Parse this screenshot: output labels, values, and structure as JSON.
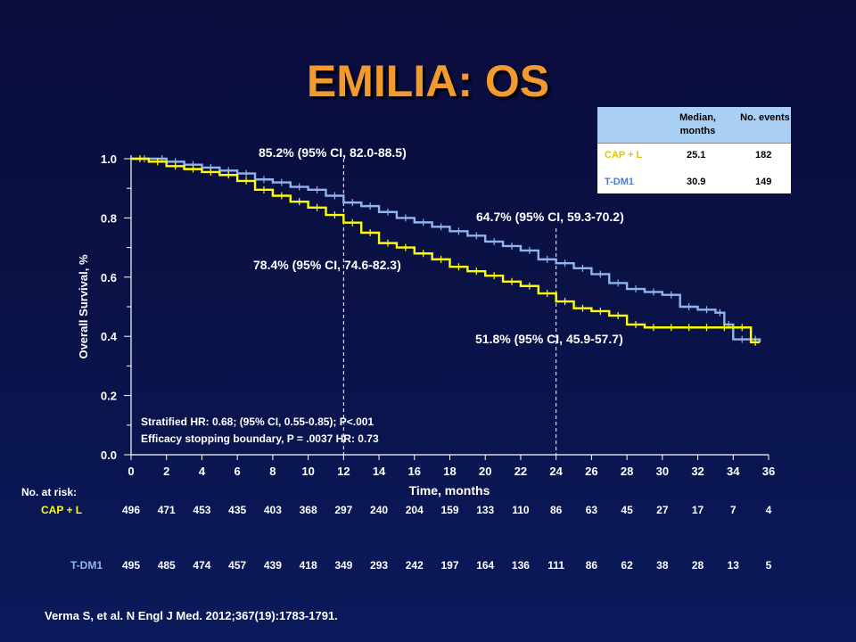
{
  "title": "EMILIA: OS",
  "colors": {
    "cap_l": "#ffff00",
    "tdm1": "#8fb4ee",
    "title": "#f29a2e"
  },
  "stat_table": {
    "headers": [
      "",
      "Median, months",
      "No. events"
    ],
    "rows": [
      {
        "name": "CAP + L",
        "median": "25.1",
        "events": "182"
      },
      {
        "name": "T-DM1",
        "median": "30.9",
        "events": "149"
      }
    ]
  },
  "annotations": {
    "t12_tdm1": "85.2% (95% CI, 82.0-88.5)",
    "t12_capl": "78.4% (95% CI, 74.6-82.3)",
    "t24_tdm1": "64.7% (95% CI, 59.3-70.2)",
    "t24_capl": "51.8% (95% CI, 45.9-57.7)",
    "hr_line1": "Stratified HR: 0.68; (95% CI, 0.55-0.85); P<.001",
    "hr_line2": "Efficacy stopping boundary, P = .0037 HR: 0.73"
  },
  "risk_table": {
    "header": "No. at risk:",
    "cap_l": {
      "label": "CAP + L",
      "values": [
        "496",
        "471",
        "453",
        "435",
        "403",
        "368",
        "297",
        "240",
        "204",
        "159",
        "133",
        "110",
        "86",
        "63",
        "45",
        "27",
        "17",
        "7",
        "4"
      ]
    },
    "tdm1": {
      "label": "T-DM1",
      "values": [
        "495",
        "485",
        "474",
        "457",
        "439",
        "418",
        "349",
        "293",
        "242",
        "197",
        "164",
        "136",
        "111",
        "86",
        "62",
        "38",
        "28",
        "13",
        "5"
      ]
    }
  },
  "citation": "Verma S, et al. N Engl J Med. 2012;367(19):1783-1791.",
  "chart_data": {
    "type": "line",
    "xlabel": "Time, months",
    "ylabel": "Overall Survival, %",
    "xlim": [
      0,
      36
    ],
    "ylim": [
      0,
      1.0
    ],
    "xticks": [
      "0",
      "2",
      "4",
      "6",
      "8",
      "10",
      "12",
      "14",
      "16",
      "18",
      "20",
      "22",
      "24",
      "26",
      "28",
      "30",
      "32",
      "34",
      "36"
    ],
    "yticks": [
      "0.0",
      "0.2",
      "0.4",
      "0.6",
      "0.8",
      "1.0"
    ],
    "reference_lines_x": [
      12,
      24
    ],
    "series": [
      {
        "name": "T-DM1",
        "color": "#8fb4ee",
        "x": [
          0,
          1.5,
          2,
          3,
          4,
          5,
          6,
          7,
          8,
          9,
          10,
          11,
          12,
          13,
          14,
          15,
          16,
          17,
          18,
          19,
          20,
          21,
          22,
          23,
          24,
          25,
          26,
          27,
          28,
          29,
          30,
          31,
          32,
          33,
          33.5,
          34,
          35,
          35.5
        ],
        "y": [
          1.0,
          1.0,
          0.99,
          0.98,
          0.97,
          0.96,
          0.95,
          0.93,
          0.92,
          0.905,
          0.895,
          0.875,
          0.852,
          0.84,
          0.82,
          0.8,
          0.785,
          0.77,
          0.755,
          0.74,
          0.72,
          0.705,
          0.69,
          0.66,
          0.647,
          0.63,
          0.61,
          0.58,
          0.56,
          0.55,
          0.54,
          0.5,
          0.49,
          0.48,
          0.44,
          0.39,
          0.39,
          0.38
        ]
      },
      {
        "name": "CAP + L",
        "color": "#ffff00",
        "x": [
          0,
          1,
          2,
          3,
          4,
          5,
          6,
          7,
          8,
          9,
          10,
          11,
          12,
          13,
          14,
          15,
          16,
          17,
          18,
          19,
          20,
          21,
          22,
          23,
          24,
          25,
          26,
          27,
          28,
          29,
          30,
          31,
          32,
          33,
          34,
          35,
          35.5
        ],
        "y": [
          1.0,
          0.99,
          0.975,
          0.965,
          0.955,
          0.945,
          0.925,
          0.895,
          0.875,
          0.855,
          0.835,
          0.81,
          0.784,
          0.75,
          0.715,
          0.7,
          0.68,
          0.66,
          0.635,
          0.62,
          0.605,
          0.585,
          0.57,
          0.545,
          0.518,
          0.495,
          0.485,
          0.47,
          0.44,
          0.43,
          0.43,
          0.43,
          0.43,
          0.43,
          0.43,
          0.38,
          0.38
        ]
      }
    ]
  }
}
